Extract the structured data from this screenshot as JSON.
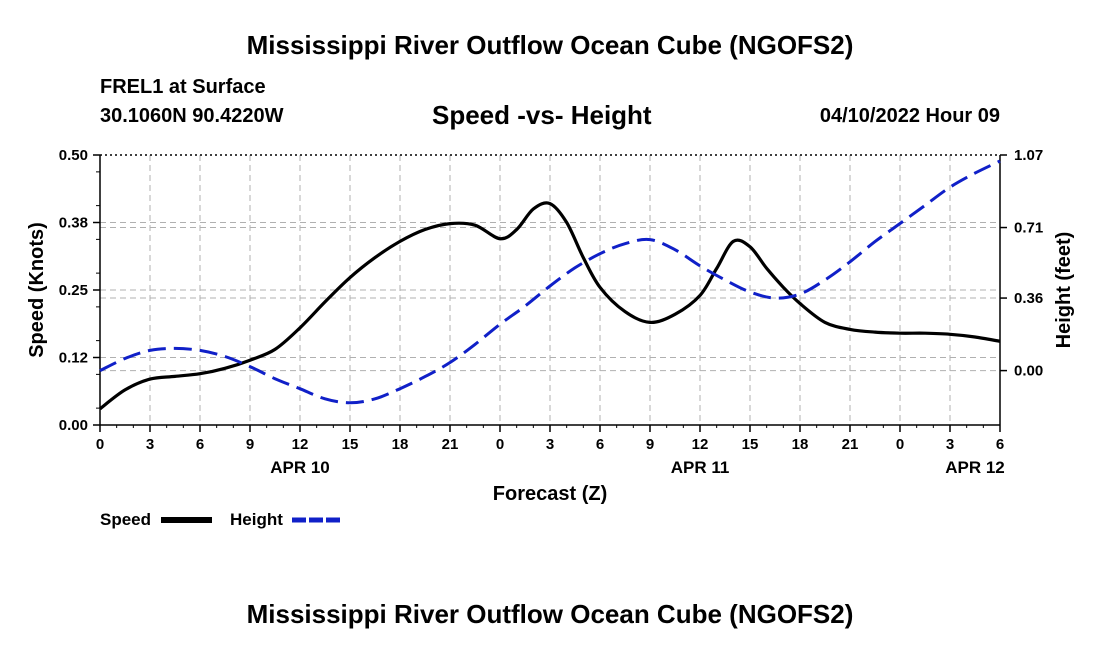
{
  "header": {
    "title": "Mississippi River Outflow Ocean Cube (NGOFS2)",
    "station": "FREL1 at Surface",
    "coords": "30.1060N  90.4220W",
    "chart_title": "Speed -vs- Height",
    "datetime": "04/10/2022 Hour 09"
  },
  "footer": {
    "title": "Mississippi River Outflow Ocean Cube (NGOFS2)"
  },
  "colors": {
    "speed": "#000000",
    "height": "#1020c8",
    "grid": "#b0b0b0"
  },
  "chart_data": {
    "type": "line",
    "title": "Speed -vs- Height",
    "xlabel": "Forecast (Z)",
    "ylabel": "Speed (Knots)",
    "y2label": "Height (feet)",
    "xlim": [
      0,
      54
    ],
    "ylim": [
      0,
      0.5
    ],
    "y2lim": [
      -0.27,
      1.07
    ],
    "x_ticks": [
      0,
      3,
      6,
      9,
      12,
      15,
      18,
      21,
      24,
      27,
      30,
      33,
      36,
      39,
      42,
      45,
      48,
      51,
      54
    ],
    "x_tick_labels": [
      "0",
      "3",
      "6",
      "9",
      "12",
      "15",
      "18",
      "21",
      "0",
      "3",
      "6",
      "9",
      "12",
      "15",
      "18",
      "21",
      "0",
      "3",
      "6"
    ],
    "y_ticks": [
      0,
      0.125,
      0.25,
      0.375,
      0.5
    ],
    "y_tick_labels": [
      "0.00",
      "0.12",
      "0.25",
      "0.38",
      "0.50"
    ],
    "y2_ticks": [
      0,
      0.36,
      0.71,
      1.07
    ],
    "y2_tick_labels": [
      "0.00",
      "0.36",
      "0.71",
      "1.07"
    ],
    "date_labels": [
      {
        "x": 12,
        "label": "APR 10"
      },
      {
        "x": 36,
        "label": "APR 11"
      },
      {
        "x": 52.5,
        "label": "APR 12"
      }
    ],
    "grid": true,
    "series": [
      {
        "name": "Speed",
        "axis": "left",
        "style": "solid",
        "x": [
          0,
          1.5,
          3,
          4.5,
          6,
          7.5,
          9,
          10.5,
          12,
          13.5,
          15,
          16.5,
          18,
          19.5,
          21,
          22.5,
          24,
          25,
          26,
          27,
          28,
          29,
          30,
          31.5,
          33,
          34.5,
          36,
          37,
          38,
          39,
          40,
          41,
          42,
          43.5,
          45,
          46.5,
          48,
          49.5,
          51,
          52.5,
          54
        ],
        "values": [
          0.03,
          0.065,
          0.085,
          0.09,
          0.095,
          0.105,
          0.12,
          0.14,
          0.18,
          0.228,
          0.273,
          0.31,
          0.34,
          0.362,
          0.373,
          0.37,
          0.345,
          0.362,
          0.4,
          0.41,
          0.375,
          0.31,
          0.255,
          0.21,
          0.19,
          0.205,
          0.24,
          0.29,
          0.34,
          0.33,
          0.29,
          0.255,
          0.225,
          0.19,
          0.177,
          0.172,
          0.17,
          0.17,
          0.168,
          0.163,
          0.155
        ]
      },
      {
        "name": "Height",
        "axis": "right",
        "style": "dashed",
        "x": [
          0,
          1.5,
          3,
          4.5,
          6,
          7.5,
          9,
          10.5,
          12,
          13.5,
          15,
          16.5,
          18,
          19.5,
          21,
          22.5,
          24,
          25.5,
          27,
          28.5,
          30,
          31.5,
          33,
          34.5,
          36,
          37.5,
          39,
          40.5,
          42,
          43.5,
          45,
          46.5,
          48,
          49.5,
          51,
          52.5,
          54
        ],
        "values": [
          0.0,
          0.06,
          0.1,
          0.11,
          0.1,
          0.07,
          0.02,
          -0.04,
          -0.09,
          -0.14,
          -0.16,
          -0.14,
          -0.09,
          -0.03,
          0.04,
          0.13,
          0.23,
          0.32,
          0.42,
          0.51,
          0.58,
          0.63,
          0.65,
          0.6,
          0.52,
          0.45,
          0.39,
          0.36,
          0.38,
          0.45,
          0.54,
          0.64,
          0.73,
          0.82,
          0.91,
          0.98,
          1.04
        ]
      }
    ],
    "legend": [
      {
        "label": "Speed",
        "style": "solid"
      },
      {
        "label": "Height",
        "style": "dashed"
      }
    ]
  }
}
